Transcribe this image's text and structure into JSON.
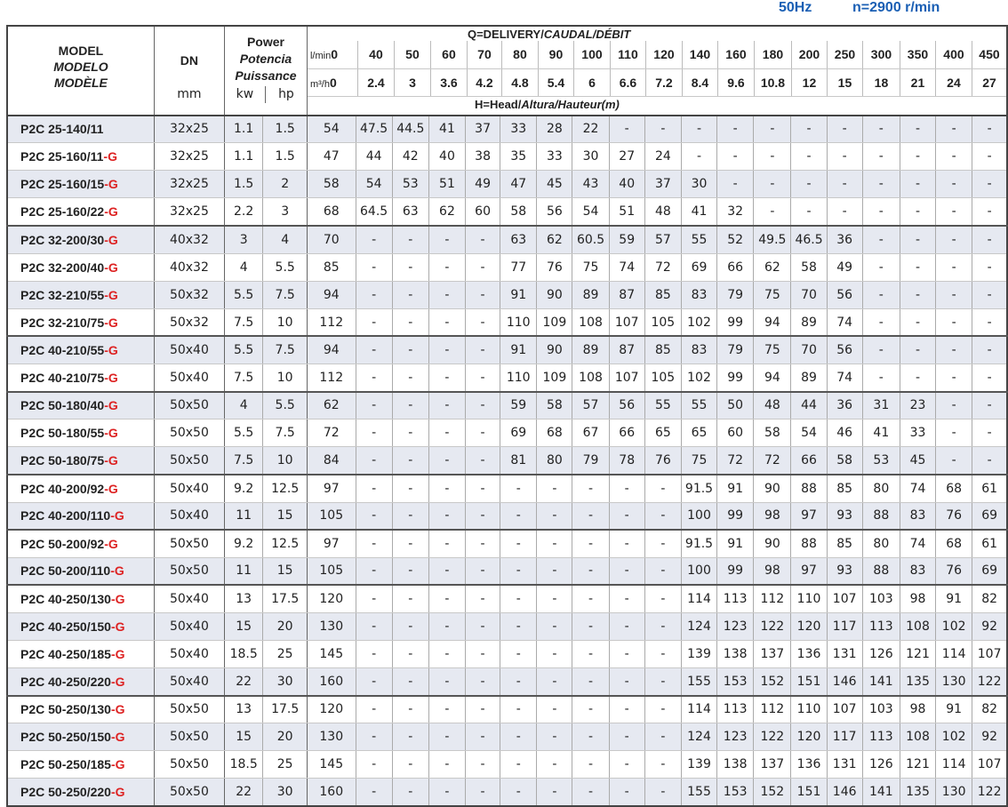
{
  "header_info": {
    "frequency": "50Hz",
    "speed": "n=2900 r/min"
  },
  "colors": {
    "accent": "#1a5fb4",
    "suffix": "#d22222",
    "stripe": "#e6e9f1"
  },
  "columns": {
    "model": [
      "MODEL",
      "MODELO",
      "MODÈLE"
    ],
    "dn": "DN",
    "dn_unit": "mm",
    "power": [
      "Power",
      "Potencia",
      "Puissance"
    ],
    "kw": "kw",
    "hp": "hp",
    "delivery_prefix": "Q=DELIVERY/",
    "delivery_rest": "CAUDAL/DÉBIT",
    "head_prefix": "H=Head/",
    "head_rest": "Altura/Hauteur(m)",
    "lmin_unit": "l/min",
    "m3h_unit": "m³/h",
    "lmin": [
      "0",
      "40",
      "50",
      "60",
      "70",
      "80",
      "90",
      "100",
      "110",
      "120",
      "140",
      "160",
      "180",
      "200",
      "250",
      "300",
      "350",
      "400",
      "450"
    ],
    "m3h": [
      "0",
      "2.4",
      "3",
      "3.6",
      "4.2",
      "4.8",
      "5.4",
      "6",
      "6.6",
      "7.2",
      "8.4",
      "9.6",
      "10.8",
      "12",
      "15",
      "18",
      "21",
      "24",
      "27"
    ]
  },
  "rows": [
    {
      "model": "P2C 25-140/11",
      "suffix": "",
      "dn": "32x25",
      "kw": "1.1",
      "hp": "1.5",
      "group_start": true,
      "h": [
        "54",
        "47.5",
        "44.5",
        "41",
        "37",
        "33",
        "28",
        "22",
        "-",
        "-",
        "-",
        "-",
        "-",
        "-",
        "-",
        "-",
        "-",
        "-",
        "-"
      ]
    },
    {
      "model": "P2C 25-160/11",
      "suffix": "-G",
      "dn": "32x25",
      "kw": "1.1",
      "hp": "1.5",
      "h": [
        "47",
        "44",
        "42",
        "40",
        "38",
        "35",
        "33",
        "30",
        "27",
        "24",
        "-",
        "-",
        "-",
        "-",
        "-",
        "-",
        "-",
        "-",
        "-"
      ]
    },
    {
      "model": "P2C 25-160/15",
      "suffix": "-G",
      "dn": "32x25",
      "kw": "1.5",
      "hp": "2",
      "h": [
        "58",
        "54",
        "53",
        "51",
        "49",
        "47",
        "45",
        "43",
        "40",
        "37",
        "30",
        "-",
        "-",
        "-",
        "-",
        "-",
        "-",
        "-",
        "-"
      ]
    },
    {
      "model": "P2C 25-160/22",
      "suffix": "-G",
      "dn": "32x25",
      "kw": "2.2",
      "hp": "3",
      "h": [
        "68",
        "64.5",
        "63",
        "62",
        "60",
        "58",
        "56",
        "54",
        "51",
        "48",
        "41",
        "32",
        "-",
        "-",
        "-",
        "-",
        "-",
        "-",
        "-"
      ]
    },
    {
      "model": "P2C 32-200/30",
      "suffix": "-G",
      "dn": "40x32",
      "kw": "3",
      "hp": "4",
      "group_start": true,
      "h": [
        "70",
        "-",
        "-",
        "-",
        "-",
        "63",
        "62",
        "60.5",
        "59",
        "57",
        "55",
        "52",
        "49.5",
        "46.5",
        "36",
        "-",
        "-",
        "-",
        "-"
      ]
    },
    {
      "model": "P2C 32-200/40",
      "suffix": "-G",
      "dn": "40x32",
      "kw": "4",
      "hp": "5.5",
      "h": [
        "85",
        "-",
        "-",
        "-",
        "-",
        "77",
        "76",
        "75",
        "74",
        "72",
        "69",
        "66",
        "62",
        "58",
        "49",
        "-",
        "-",
        "-",
        "-"
      ]
    },
    {
      "model": "P2C 32-210/55",
      "suffix": "-G",
      "dn": "50x32",
      "kw": "5.5",
      "hp": "7.5",
      "h": [
        "94",
        "-",
        "-",
        "-",
        "-",
        "91",
        "90",
        "89",
        "87",
        "85",
        "83",
        "79",
        "75",
        "70",
        "56",
        "-",
        "-",
        "-",
        "-"
      ]
    },
    {
      "model": "P2C 32-210/75",
      "suffix": "-G",
      "dn": "50x32",
      "kw": "7.5",
      "hp": "10",
      "h": [
        "112",
        "-",
        "-",
        "-",
        "-",
        "110",
        "109",
        "108",
        "107",
        "105",
        "102",
        "99",
        "94",
        "89",
        "74",
        "-",
        "-",
        "-",
        "-"
      ]
    },
    {
      "model": "P2C 40-210/55",
      "suffix": "-G",
      "dn": "50x40",
      "kw": "5.5",
      "hp": "7.5",
      "group_start": true,
      "h": [
        "94",
        "-",
        "-",
        "-",
        "-",
        "91",
        "90",
        "89",
        "87",
        "85",
        "83",
        "79",
        "75",
        "70",
        "56",
        "-",
        "-",
        "-",
        "-"
      ]
    },
    {
      "model": "P2C 40-210/75",
      "suffix": "-G",
      "dn": "50x40",
      "kw": "7.5",
      "hp": "10",
      "h": [
        "112",
        "-",
        "-",
        "-",
        "-",
        "110",
        "109",
        "108",
        "107",
        "105",
        "102",
        "99",
        "94",
        "89",
        "74",
        "-",
        "-",
        "-",
        "-"
      ]
    },
    {
      "model": "P2C 50-180/40",
      "suffix": "-G",
      "dn": "50x50",
      "kw": "4",
      "hp": "5.5",
      "group_start": true,
      "h": [
        "62",
        "-",
        "-",
        "-",
        "-",
        "59",
        "58",
        "57",
        "56",
        "55",
        "55",
        "50",
        "48",
        "44",
        "36",
        "31",
        "23",
        "-",
        "-"
      ]
    },
    {
      "model": "P2C 50-180/55",
      "suffix": "-G",
      "dn": "50x50",
      "kw": "5.5",
      "hp": "7.5",
      "h": [
        "72",
        "-",
        "-",
        "-",
        "-",
        "69",
        "68",
        "67",
        "66",
        "65",
        "65",
        "60",
        "58",
        "54",
        "46",
        "41",
        "33",
        "-",
        "-"
      ]
    },
    {
      "model": "P2C 50-180/75",
      "suffix": "-G",
      "dn": "50x50",
      "kw": "7.5",
      "hp": "10",
      "h": [
        "84",
        "-",
        "-",
        "-",
        "-",
        "81",
        "80",
        "79",
        "78",
        "76",
        "75",
        "72",
        "72",
        "66",
        "58",
        "53",
        "45",
        "-",
        "-"
      ]
    },
    {
      "model": "P2C 40-200/92",
      "suffix": "-G",
      "dn": "50x40",
      "kw": "9.2",
      "hp": "12.5",
      "group_start": true,
      "h": [
        "97",
        "-",
        "-",
        "-",
        "-",
        "-",
        "-",
        "-",
        "-",
        "-",
        "91.5",
        "91",
        "90",
        "88",
        "85",
        "80",
        "74",
        "68",
        "61"
      ]
    },
    {
      "model": "P2C 40-200/110",
      "suffix": "-G",
      "dn": "50x40",
      "kw": "11",
      "hp": "15",
      "h": [
        "105",
        "-",
        "-",
        "-",
        "-",
        "-",
        "-",
        "-",
        "-",
        "-",
        "100",
        "99",
        "98",
        "97",
        "93",
        "88",
        "83",
        "76",
        "69"
      ]
    },
    {
      "model": "P2C 50-200/92",
      "suffix": "-G",
      "dn": "50x50",
      "kw": "9.2",
      "hp": "12.5",
      "group_start": true,
      "h": [
        "97",
        "-",
        "-",
        "-",
        "-",
        "-",
        "-",
        "-",
        "-",
        "-",
        "91.5",
        "91",
        "90",
        "88",
        "85",
        "80",
        "74",
        "68",
        "61"
      ]
    },
    {
      "model": "P2C 50-200/110",
      "suffix": "-G",
      "dn": "50x50",
      "kw": "11",
      "hp": "15",
      "h": [
        "105",
        "-",
        "-",
        "-",
        "-",
        "-",
        "-",
        "-",
        "-",
        "-",
        "100",
        "99",
        "98",
        "97",
        "93",
        "88",
        "83",
        "76",
        "69"
      ]
    },
    {
      "model": "P2C 40-250/130",
      "suffix": "-G",
      "dn": "50x40",
      "kw": "13",
      "hp": "17.5",
      "group_start": true,
      "h": [
        "120",
        "-",
        "-",
        "-",
        "-",
        "-",
        "-",
        "-",
        "-",
        "-",
        "114",
        "113",
        "112",
        "110",
        "107",
        "103",
        "98",
        "91",
        "82"
      ]
    },
    {
      "model": "P2C 40-250/150",
      "suffix": "-G",
      "dn": "50x40",
      "kw": "15",
      "hp": "20",
      "h": [
        "130",
        "-",
        "-",
        "-",
        "-",
        "-",
        "-",
        "-",
        "-",
        "-",
        "124",
        "123",
        "122",
        "120",
        "117",
        "113",
        "108",
        "102",
        "92"
      ]
    },
    {
      "model": "P2C 40-250/185",
      "suffix": "-G",
      "dn": "50x40",
      "kw": "18.5",
      "hp": "25",
      "h": [
        "145",
        "-",
        "-",
        "-",
        "-",
        "-",
        "-",
        "-",
        "-",
        "-",
        "139",
        "138",
        "137",
        "136",
        "131",
        "126",
        "121",
        "114",
        "107"
      ]
    },
    {
      "model": "P2C 40-250/220",
      "suffix": "-G",
      "dn": "50x40",
      "kw": "22",
      "hp": "30",
      "h": [
        "160",
        "-",
        "-",
        "-",
        "-",
        "-",
        "-",
        "-",
        "-",
        "-",
        "155",
        "153",
        "152",
        "151",
        "146",
        "141",
        "135",
        "130",
        "122"
      ]
    },
    {
      "model": "P2C 50-250/130",
      "suffix": "-G",
      "dn": "50x50",
      "kw": "13",
      "hp": "17.5",
      "group_start": true,
      "h": [
        "120",
        "-",
        "-",
        "-",
        "-",
        "-",
        "-",
        "-",
        "-",
        "-",
        "114",
        "113",
        "112",
        "110",
        "107",
        "103",
        "98",
        "91",
        "82"
      ]
    },
    {
      "model": "P2C 50-250/150",
      "suffix": "-G",
      "dn": "50x50",
      "kw": "15",
      "hp": "20",
      "h": [
        "130",
        "-",
        "-",
        "-",
        "-",
        "-",
        "-",
        "-",
        "-",
        "-",
        "124",
        "123",
        "122",
        "120",
        "117",
        "113",
        "108",
        "102",
        "92"
      ]
    },
    {
      "model": "P2C 50-250/185",
      "suffix": "-G",
      "dn": "50x50",
      "kw": "18.5",
      "hp": "25",
      "h": [
        "145",
        "-",
        "-",
        "-",
        "-",
        "-",
        "-",
        "-",
        "-",
        "-",
        "139",
        "138",
        "137",
        "136",
        "131",
        "126",
        "121",
        "114",
        "107"
      ]
    },
    {
      "model": "P2C 50-250/220",
      "suffix": "-G",
      "dn": "50x50",
      "kw": "22",
      "hp": "30",
      "h": [
        "160",
        "-",
        "-",
        "-",
        "-",
        "-",
        "-",
        "-",
        "-",
        "-",
        "155",
        "153",
        "152",
        "151",
        "146",
        "141",
        "135",
        "130",
        "122"
      ]
    }
  ]
}
